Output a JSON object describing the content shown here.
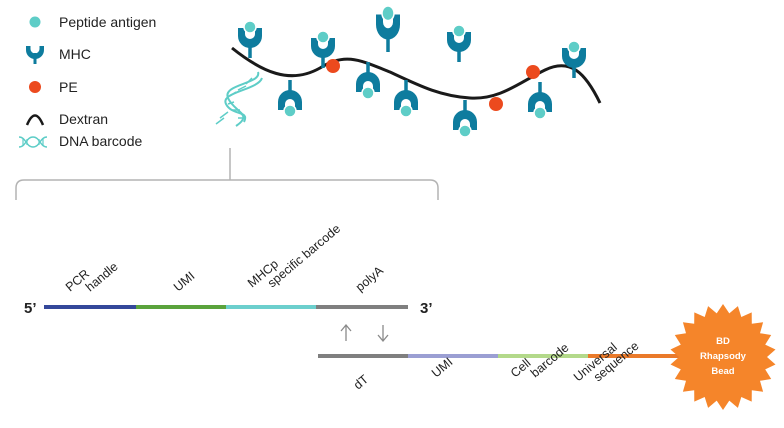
{
  "legend": {
    "items": [
      {
        "icon": "peptide-antigen-icon",
        "label": "Peptide antigen"
      },
      {
        "icon": "mhc-icon",
        "label": "MHC"
      },
      {
        "icon": "pe-icon",
        "label": "PE"
      },
      {
        "icon": "dextran-icon",
        "label": "Dextran"
      },
      {
        "icon": "dna-barcode-icon",
        "label": "DNA barcode"
      }
    ]
  },
  "colors": {
    "teal": "#0e7c9e",
    "peptide": "#5ecdc7",
    "pe": "#ec4a1e",
    "dextran": "#1a1a1a",
    "dna": "#5ecdc7",
    "bracket": "#b3b3b3",
    "handle": "#34489a",
    "umi": "#5aa33c",
    "mhcp": "#6ccfcd",
    "polya": "#7f7f7f",
    "dt": "#7f7f7f",
    "umi2": "#9b9fd3",
    "cell": "#b3d98a",
    "universal": "#ea7a2a",
    "bead": "#f5852a"
  },
  "oligo_top": {
    "five_prime": "5’",
    "three_prime": "3’",
    "segments": [
      {
        "lines": [
          "PCR",
          "handle"
        ]
      },
      {
        "lines": [
          "UMI"
        ]
      },
      {
        "lines": [
          "MHCp",
          "specific barcode"
        ]
      },
      {
        "lines": [
          "polyA"
        ]
      }
    ]
  },
  "oligo_bottom": {
    "segments": [
      {
        "lines": [
          "dT"
        ]
      },
      {
        "lines": [
          "UMI"
        ]
      },
      {
        "lines": [
          "Cell",
          "barcode"
        ]
      },
      {
        "lines": [
          "Universal",
          "sequence"
        ]
      }
    ]
  },
  "bead": {
    "lines": [
      "BD",
      "Rhapsody",
      "Bead"
    ]
  }
}
